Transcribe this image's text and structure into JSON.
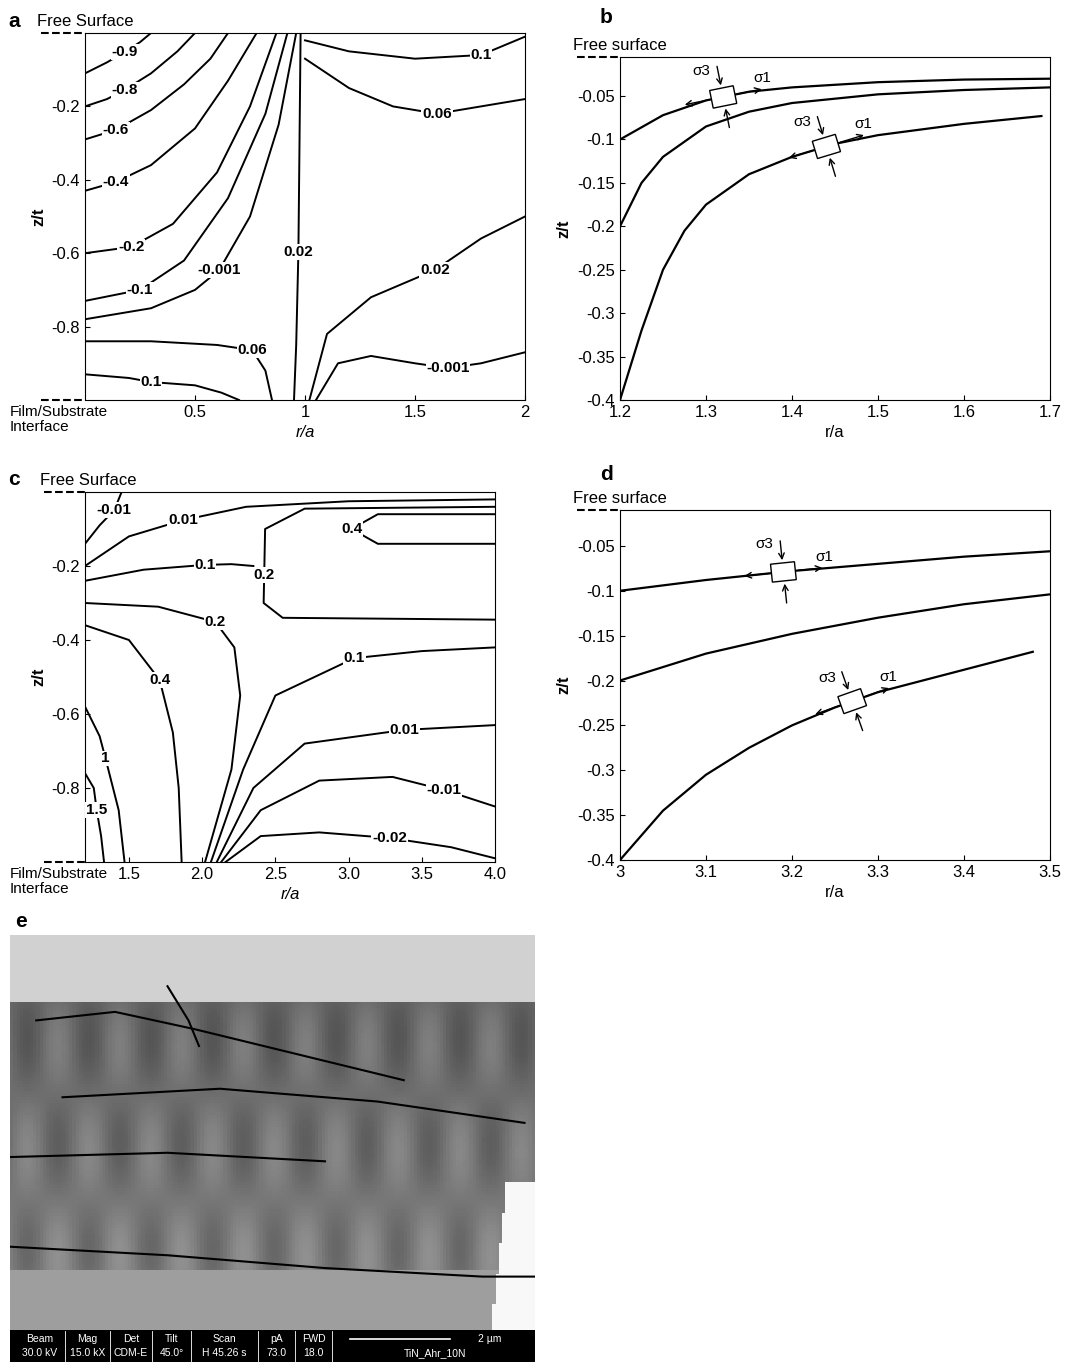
{
  "chart_data": [
    {
      "type": "contour",
      "panel_label": "a",
      "surface_label": "Free Surface",
      "interface_label": "Film/Substrate\nInterface",
      "xlabel": "r/a",
      "ylabel": "z/t",
      "xlim": [
        0,
        2
      ],
      "ylim": [
        -1,
        0
      ],
      "xticks": [
        0.5,
        1,
        1.5,
        2
      ],
      "yticks": [
        -0.8,
        -0.6,
        -0.4,
        -0.2
      ],
      "series": [
        {
          "level": -0.9,
          "x": [
            0,
            0.1,
            0.18,
            0.25,
            0.3
          ],
          "y": [
            -0.11,
            -0.08,
            -0.052,
            -0.025,
            0
          ],
          "label_x": 0.18,
          "label_y": -0.052
        },
        {
          "level": -0.8,
          "x": [
            0,
            0.1,
            0.18,
            0.3,
            0.42,
            0.5
          ],
          "y": [
            -0.2,
            -0.18,
            -0.155,
            -0.11,
            -0.05,
            0
          ],
          "label_x": 0.18,
          "label_y": -0.155
        },
        {
          "level": -0.6,
          "x": [
            0,
            0.14,
            0.3,
            0.45,
            0.57,
            0.65
          ],
          "y": [
            -0.29,
            -0.264,
            -0.21,
            -0.14,
            -0.07,
            0
          ],
          "label_x": 0.14,
          "label_y": -0.264
        },
        {
          "level": -0.4,
          "x": [
            0,
            0.14,
            0.3,
            0.5,
            0.65,
            0.78
          ],
          "y": [
            -0.43,
            -0.406,
            -0.36,
            -0.26,
            -0.13,
            0
          ],
          "label_x": 0.14,
          "label_y": -0.406
        },
        {
          "level": -0.2,
          "x": [
            0,
            0.21,
            0.4,
            0.6,
            0.75,
            0.87
          ],
          "y": [
            -0.6,
            -0.583,
            -0.52,
            -0.38,
            -0.2,
            0
          ],
          "label_x": 0.21,
          "label_y": -0.583
        },
        {
          "level": -0.1,
          "x": [
            0,
            0.25,
            0.45,
            0.65,
            0.82,
            0.92
          ],
          "y": [
            -0.73,
            -0.7,
            -0.62,
            -0.45,
            -0.22,
            0
          ],
          "label_x": 0.25,
          "label_y": -0.7
        },
        {
          "level": -0.001,
          "x": [
            0,
            0.3,
            0.5,
            0.61,
            0.75,
            0.88,
            0.96
          ],
          "y": [
            -0.78,
            -0.75,
            -0.7,
            -0.646,
            -0.5,
            -0.25,
            0
          ],
          "label_x": 0.61,
          "label_y": -0.646
        },
        {
          "level": 0.02,
          "x": [
            0.98,
            0.975,
            0.97,
            0.96,
            0.95
          ],
          "y": [
            0,
            -0.3,
            -0.597,
            -0.85,
            -1
          ],
          "label_x": 0.97,
          "label_y": -0.597
        },
        {
          "level": 0.02,
          "x": [
            1.02,
            1.1,
            1.3,
            1.59,
            1.8,
            2.0
          ],
          "y": [
            -1,
            -0.82,
            -0.72,
            -0.646,
            -0.56,
            -0.5
          ],
          "label_x": 1.59,
          "label_y": -0.646
        },
        {
          "level": -0.001,
          "x": [
            1.05,
            1.15,
            1.3,
            1.5,
            1.65,
            1.8,
            2.0
          ],
          "y": [
            -1,
            -0.9,
            -0.88,
            -0.9,
            -0.913,
            -0.9,
            -0.87
          ],
          "label_x": 1.65,
          "label_y": -0.913
        },
        {
          "level": 0.06,
          "x": [
            1.0,
            1.2,
            1.4,
            1.6,
            1.8,
            2.0
          ],
          "y": [
            -0.07,
            -0.15,
            -0.2,
            -0.22,
            -0.2,
            -0.18
          ],
          "label_x": 1.6,
          "label_y": -0.22
        },
        {
          "level": 0.1,
          "x": [
            1.0,
            1.2,
            1.5,
            1.8,
            2.0
          ],
          "y": [
            -0.02,
            -0.05,
            -0.07,
            -0.06,
            -0.01
          ],
          "label_x": 1.8,
          "label_y": -0.06
        },
        {
          "level": 0.06,
          "x": [
            0,
            0.3,
            0.6,
            0.76,
            0.82,
            0.85
          ],
          "y": [
            -0.84,
            -0.84,
            -0.85,
            -0.864,
            -0.92,
            -1
          ],
          "label_x": 0.76,
          "label_y": -0.864
        },
        {
          "level": 0.1,
          "x": [
            0,
            0.2,
            0.3,
            0.5,
            0.62,
            0.7
          ],
          "y": [
            -0.93,
            -0.94,
            -0.951,
            -0.96,
            -0.98,
            -1
          ],
          "label_x": 0.3,
          "label_y": -0.951
        }
      ]
    },
    {
      "type": "line",
      "panel_label": "b",
      "surface_label": "Free surface",
      "xlabel": "r/a",
      "ylabel": "z/t",
      "xlim": [
        1.2,
        1.7
      ],
      "ylim": [
        -0.4,
        -0.005
      ],
      "xticks": [
        1.2,
        1.3,
        1.4,
        1.5,
        1.6,
        1.7
      ],
      "yticks": [
        -0.4,
        -0.35,
        -0.3,
        -0.25,
        -0.2,
        -0.15,
        -0.1,
        -0.05
      ],
      "series": [
        {
          "x": [
            1.2,
            1.25,
            1.3,
            1.35,
            1.4,
            1.5,
            1.6,
            1.7
          ],
          "y": [
            -0.1,
            -0.072,
            -0.055,
            -0.045,
            -0.04,
            -0.034,
            -0.031,
            -0.03
          ]
        },
        {
          "x": [
            1.2,
            1.225,
            1.25,
            1.3,
            1.35,
            1.4,
            1.5,
            1.6,
            1.7
          ],
          "y": [
            -0.2,
            -0.15,
            -0.12,
            -0.085,
            -0.068,
            -0.058,
            -0.048,
            -0.043,
            -0.04
          ]
        },
        {
          "x": [
            1.2,
            1.225,
            1.25,
            1.275,
            1.3,
            1.35,
            1.4,
            1.45,
            1.5,
            1.6,
            1.69
          ],
          "y": [
            -0.4,
            -0.32,
            -0.25,
            -0.205,
            -0.175,
            -0.14,
            -0.12,
            -0.105,
            -0.095,
            -0.082,
            -0.073
          ]
        }
      ],
      "elements": [
        {
          "x": 1.32,
          "y": -0.051
        },
        {
          "x": 1.44,
          "y": -0.108
        }
      ],
      "principal_labels": {
        "tension": "σ1",
        "compression": "σ3"
      }
    },
    {
      "type": "contour",
      "panel_label": "c",
      "surface_label": "Free Surface",
      "interface_label": "Film/Substrate\nInterface",
      "xlabel": "r/a",
      "ylabel": "z/t",
      "xlim": [
        1.2,
        4.0
      ],
      "ylim": [
        -1,
        0
      ],
      "xticks": [
        1.5,
        {
          "value": 2,
          "label": "2.0"
        },
        2.5,
        {
          "value": 3,
          "label": "3.0"
        },
        3.5,
        {
          "value": 4,
          "label": "4.0"
        }
      ],
      "yticks": [
        -0.8,
        -0.6,
        -0.4,
        -0.2
      ],
      "series": [
        {
          "level": -0.01,
          "x": [
            1.2,
            1.3,
            1.4,
            1.45
          ],
          "y": [
            -0.14,
            -0.09,
            -0.049,
            0
          ],
          "label_x": 1.4,
          "label_y": -0.049
        },
        {
          "level": 0.01,
          "x": [
            1.2,
            1.5,
            1.87,
            2.3,
            3.0,
            4.0
          ],
          "y": [
            -0.2,
            -0.12,
            -0.076,
            -0.04,
            -0.025,
            -0.02
          ],
          "label_x": 1.87,
          "label_y": -0.076
        },
        {
          "level": 0.1,
          "x": [
            1.2,
            1.6,
            2.02,
            2.2,
            2.35
          ],
          "y": [
            -0.24,
            -0.21,
            -0.197,
            -0.195,
            -0.2
          ],
          "label_x": 2.02,
          "label_y": -0.197
        },
        {
          "level": 0.2,
          "x": [
            4.0,
            2.7,
            2.43,
            2.42,
            2.55,
            4.0
          ],
          "y": [
            -0.04,
            -0.045,
            -0.1,
            -0.3,
            -0.34,
            -0.345
          ],
          "label_x": 2.42,
          "label_y": -0.224
        },
        {
          "level": 0.4,
          "x": [
            4.0,
            3.2,
            3.02,
            3.2,
            4.0
          ],
          "y": [
            -0.06,
            -0.06,
            -0.1,
            -0.14,
            -0.14
          ],
          "label_x": 3.02,
          "label_y": -0.1
        },
        {
          "level": 0.2,
          "x": [
            1.2,
            1.7,
            2.09,
            2.22,
            2.26,
            2.2,
            2.02
          ],
          "y": [
            -0.3,
            -0.31,
            -0.351,
            -0.42,
            -0.55,
            -0.75,
            -1
          ],
          "label_x": 2.09,
          "label_y": -0.351
        },
        {
          "level": 0.4,
          "x": [
            1.2,
            1.5,
            1.71,
            1.8,
            1.84,
            1.86
          ],
          "y": [
            -0.36,
            -0.4,
            -0.508,
            -0.65,
            -0.8,
            -1
          ],
          "label_x": 1.71,
          "label_y": -0.508
        },
        {
          "level": 1,
          "x": [
            1.2,
            1.3,
            1.34,
            1.43,
            1.47
          ],
          "y": [
            -0.58,
            -0.66,
            -0.72,
            -0.86,
            -1
          ],
          "label_x": 1.34,
          "label_y": -0.72
        },
        {
          "level": 1.5,
          "x": [
            1.2,
            1.26,
            1.28,
            1.31,
            1.33
          ],
          "y": [
            -0.76,
            -0.8,
            -0.86,
            -0.93,
            -1
          ],
          "label_x": 1.28,
          "label_y": -0.86
        },
        {
          "level": 0.1,
          "x": [
            2.06,
            2.28,
            2.5,
            3.04,
            3.5,
            4.0
          ],
          "y": [
            -1,
            -0.75,
            -0.55,
            -0.449,
            -0.43,
            -0.42
          ],
          "label_x": 3.04,
          "label_y": -0.449
        },
        {
          "level": 0.01,
          "x": [
            2.1,
            2.35,
            2.7,
            3.38,
            4.0
          ],
          "y": [
            -1,
            -0.8,
            -0.68,
            -0.643,
            -0.63
          ],
          "label_x": 3.38,
          "label_y": -0.643
        },
        {
          "level": -0.01,
          "x": [
            2.13,
            2.4,
            2.8,
            3.3,
            3.65,
            4.0
          ],
          "y": [
            -1,
            -0.86,
            -0.78,
            -0.77,
            -0.805,
            -0.85
          ],
          "label_x": 3.65,
          "label_y": -0.805
        },
        {
          "level": -0.02,
          "x": [
            2.16,
            2.4,
            2.8,
            3.28,
            3.7,
            4.0
          ],
          "y": [
            -1,
            -0.93,
            -0.92,
            -0.935,
            -0.96,
            -0.99
          ],
          "label_x": 3.28,
          "label_y": -0.935
        }
      ]
    },
    {
      "type": "line",
      "panel_label": "d",
      "surface_label": "Free surface",
      "xlabel": "r/a",
      "ylabel": "z/t",
      "xlim": [
        3,
        3.5
      ],
      "ylim": [
        -0.4,
        -0.01
      ],
      "xticks": [
        3,
        3.1,
        3.2,
        3.3,
        3.4,
        3.5
      ],
      "yticks": [
        -0.4,
        -0.35,
        -0.3,
        -0.25,
        -0.2,
        -0.15,
        -0.1,
        -0.05
      ],
      "series": [
        {
          "x": [
            3.0,
            3.1,
            3.2,
            3.3,
            3.4,
            3.5
          ],
          "y": [
            -0.1,
            -0.088,
            -0.078,
            -0.07,
            -0.062,
            -0.056
          ]
        },
        {
          "x": [
            3.0,
            3.1,
            3.2,
            3.3,
            3.4,
            3.5
          ],
          "y": [
            -0.2,
            -0.17,
            -0.148,
            -0.13,
            -0.115,
            -0.104
          ]
        },
        {
          "x": [
            3.0,
            3.05,
            3.1,
            3.15,
            3.2,
            3.25,
            3.3,
            3.4,
            3.48
          ],
          "y": [
            -0.4,
            -0.345,
            -0.305,
            -0.275,
            -0.25,
            -0.23,
            -0.213,
            -0.188,
            -0.168
          ]
        }
      ],
      "elements": [
        {
          "x": 3.19,
          "y": -0.079
        },
        {
          "x": 3.27,
          "y": -0.223
        }
      ],
      "principal_labels": {
        "tension": "σ1",
        "compression": "σ3"
      }
    }
  ],
  "panel_e": {
    "panel_label": "e",
    "info_bar": [
      {
        "name": "Beam",
        "value": "30.0 kV"
      },
      {
        "name": "Mag",
        "value": "15.0 kX"
      },
      {
        "name": "Det",
        "value": "CDM-E"
      },
      {
        "name": "Tilt",
        "value": "45.0°"
      },
      {
        "name": "Scan",
        "value": "H 45.26 s"
      },
      {
        "name": "pA",
        "value": "73.0"
      },
      {
        "name": "FWD",
        "value": "18.0"
      }
    ],
    "scale_bar": "2 µm",
    "sample": "TiN_Ahr_10N"
  }
}
